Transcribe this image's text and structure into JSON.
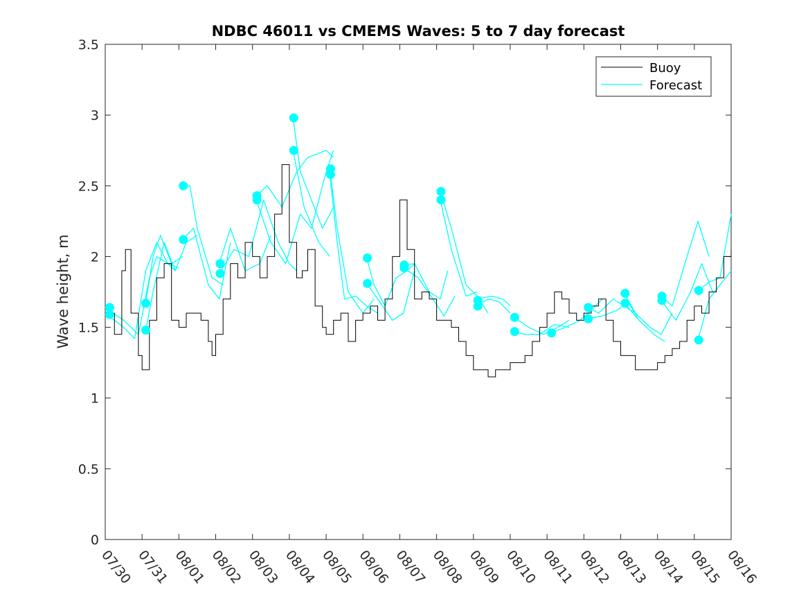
{
  "chart_data": {
    "type": "line",
    "title": "NDBC 46011 vs CMEMS Waves: 5 to 7 day forecast",
    "xlabel": "",
    "ylabel": "Wave height, m",
    "xlim": [
      0,
      17
    ],
    "ylim": [
      0,
      3.5
    ],
    "x_tick_labels": [
      "07/30",
      "07/31",
      "08/01",
      "08/02",
      "08/03",
      "08/04",
      "08/05",
      "08/06",
      "08/07",
      "08/08",
      "08/09",
      "08/10",
      "08/11",
      "08/12",
      "08/13",
      "08/14",
      "08/15",
      "08/16"
    ],
    "y_ticks": [
      0,
      0.5,
      1,
      1.5,
      2,
      2.5,
      3,
      3.5
    ],
    "y_tick_labels": [
      "0",
      "0.5",
      "1",
      "1.5",
      "2",
      "2.5",
      "3",
      "3.5"
    ],
    "legend": {
      "position": "top-right",
      "entries": [
        "Buoy",
        "Forecast"
      ]
    },
    "colors": {
      "buoy": "#000000",
      "forecast": "#00ffff",
      "axes": "#262626"
    },
    "series": [
      {
        "name": "Buoy",
        "type": "step",
        "x": [
          0,
          0.25,
          0.45,
          0.55,
          0.7,
          0.9,
          1.0,
          1.2,
          1.4,
          1.6,
          1.8,
          2.0,
          2.2,
          2.4,
          2.6,
          2.8,
          2.9,
          3.0,
          3.2,
          3.4,
          3.6,
          3.8,
          4.0,
          4.2,
          4.4,
          4.6,
          4.8,
          5.0,
          5.2,
          5.35,
          5.5,
          5.7,
          5.9,
          6.0,
          6.2,
          6.4,
          6.6,
          6.8,
          7.0,
          7.2,
          7.4,
          7.6,
          7.8,
          8.0,
          8.2,
          8.4,
          8.6,
          8.8,
          9.0,
          9.2,
          9.4,
          9.6,
          9.8,
          10.0,
          10.2,
          10.4,
          10.6,
          10.8,
          11.0,
          11.2,
          11.4,
          11.6,
          11.8,
          12.0,
          12.2,
          12.4,
          12.6,
          12.8,
          13.0,
          13.2,
          13.4,
          13.6,
          13.8,
          14.0,
          14.2,
          14.4,
          14.6,
          14.8,
          15.0,
          15.2,
          15.4,
          15.6,
          15.8,
          16.0,
          16.2,
          16.4,
          16.6,
          16.8,
          17.0
        ],
        "values": [
          1.6,
          1.45,
          1.9,
          2.05,
          1.6,
          1.3,
          1.2,
          1.55,
          1.85,
          1.95,
          1.55,
          1.5,
          1.6,
          1.6,
          1.55,
          1.4,
          1.3,
          1.45,
          1.7,
          1.95,
          1.85,
          2.1,
          2.0,
          1.85,
          2.0,
          2.3,
          2.65,
          2.1,
          1.85,
          1.9,
          2.05,
          1.65,
          1.5,
          1.45,
          1.55,
          1.6,
          1.4,
          1.55,
          1.6,
          1.65,
          1.55,
          1.7,
          2.0,
          2.4,
          2.05,
          1.7,
          1.75,
          1.7,
          1.55,
          1.55,
          1.5,
          1.4,
          1.3,
          1.2,
          1.2,
          1.15,
          1.2,
          1.2,
          1.25,
          1.25,
          1.3,
          1.4,
          1.5,
          1.6,
          1.75,
          1.7,
          1.6,
          1.55,
          1.6,
          1.65,
          1.7,
          1.55,
          1.4,
          1.3,
          1.3,
          1.2,
          1.2,
          1.2,
          1.25,
          1.3,
          1.35,
          1.4,
          1.55,
          1.65,
          1.6,
          1.75,
          1.85,
          2.0,
          2.05
        ]
      },
      {
        "name": "Forecast",
        "lines": [
          {
            "x": [
              0.1,
              0.5,
              0.9,
              1.2,
              1.4,
              1.7,
              2.0
            ],
            "values": [
              1.62,
              1.55,
              1.45,
              1.85,
              2.0,
              1.95,
              1.92
            ]
          },
          {
            "x": [
              0.1,
              0.5,
              0.8,
              1.1,
              1.4,
              1.7,
              1.9
            ],
            "values": [
              1.58,
              1.5,
              1.42,
              1.9,
              2.1,
              1.95,
              1.9
            ]
          },
          {
            "x": [
              1.1,
              1.3,
              1.5,
              1.8,
              2.1
            ],
            "values": [
              1.67,
              2.0,
              2.15,
              1.95,
              2.0
            ]
          },
          {
            "x": [
              1.1,
              1.3,
              1.6,
              1.9,
              2.2,
              2.5
            ],
            "values": [
              1.48,
              1.75,
              2.1,
              1.9,
              2.1,
              2.15
            ]
          },
          {
            "x": [
              2.1,
              2.3,
              2.5,
              2.9,
              3.2
            ],
            "values": [
              2.5,
              2.5,
              2.2,
              1.85,
              1.8
            ]
          },
          {
            "x": [
              2.1,
              2.4,
              2.8,
              3.1,
              3.4
            ],
            "values": [
              2.12,
              2.2,
              1.8,
              1.7,
              2.1
            ]
          },
          {
            "x": [
              3.1,
              3.4,
              3.8,
              4.2,
              4.5
            ],
            "values": [
              1.95,
              2.2,
              1.9,
              1.95,
              2.15
            ]
          },
          {
            "x": [
              3.1,
              3.5,
              3.9,
              4.3,
              4.7,
              5.0,
              5.2
            ],
            "values": [
              1.88,
              2.05,
              2.0,
              2.4,
              2.1,
              1.95,
              1.9
            ]
          },
          {
            "x": [
              4.1,
              4.4,
              4.8,
              5.2,
              5.5,
              6.0,
              6.2
            ],
            "values": [
              2.43,
              2.5,
              2.35,
              2.6,
              2.7,
              2.75,
              2.7
            ]
          },
          {
            "x": [
              4.1,
              4.5,
              4.9,
              5.3,
              5.6,
              6.0,
              6.2
            ],
            "values": [
              2.4,
              2.1,
              1.95,
              2.3,
              2.2,
              2.6,
              2.75
            ]
          },
          {
            "x": [
              5.1,
              5.3,
              5.6,
              5.9,
              6.2
            ],
            "values": [
              2.98,
              2.6,
              2.4,
              2.2,
              2.35
            ]
          },
          {
            "x": [
              5.1,
              5.4,
              5.8,
              6.1
            ],
            "values": [
              2.75,
              2.35,
              2.1,
              2.0
            ]
          },
          {
            "x": [
              6.1,
              6.3,
              6.6,
              7.0,
              7.3
            ],
            "values": [
              2.62,
              2.2,
              1.75,
              1.6,
              1.7
            ]
          },
          {
            "x": [
              6.1,
              6.3,
              6.5,
              6.8,
              7.1,
              7.4
            ],
            "values": [
              2.58,
              2.1,
              1.7,
              1.72,
              1.65,
              1.6
            ]
          },
          {
            "x": [
              7.1,
              7.3,
              7.6,
              7.9,
              8.2,
              8.4
            ],
            "values": [
              1.99,
              1.8,
              1.65,
              1.85,
              1.9,
              1.95
            ]
          },
          {
            "x": [
              7.1,
              7.4,
              7.8,
              8.1,
              8.4
            ],
            "values": [
              1.81,
              1.7,
              1.55,
              1.6,
              1.9
            ]
          },
          {
            "x": [
              8.1,
              8.4,
              8.8,
              9.1,
              9.3
            ],
            "values": [
              1.94,
              1.95,
              1.75,
              1.7,
              1.9
            ]
          },
          {
            "x": [
              8.1,
              8.5,
              8.9,
              9.2,
              9.5
            ],
            "values": [
              1.92,
              1.85,
              1.7,
              1.58,
              1.72
            ]
          },
          {
            "x": [
              9.1,
              9.4,
              9.8,
              10.1,
              10.4
            ],
            "values": [
              2.46,
              2.2,
              1.8,
              1.72,
              1.6
            ]
          },
          {
            "x": [
              9.1,
              9.4,
              9.8,
              10.1
            ],
            "values": [
              2.4,
              2.05,
              1.72,
              1.75
            ]
          },
          {
            "x": [
              10.1,
              10.5,
              10.8,
              11.0
            ],
            "values": [
              1.7,
              1.72,
              1.7,
              1.65
            ]
          },
          {
            "x": [
              10.1,
              10.4,
              10.7,
              11.0
            ],
            "values": [
              1.65,
              1.7,
              1.68,
              1.6
            ]
          },
          {
            "x": [
              11.1,
              11.5,
              11.9,
              12.3,
              12.6
            ],
            "values": [
              1.57,
              1.5,
              1.45,
              1.5,
              1.55
            ]
          },
          {
            "x": [
              11.1,
              11.4,
              11.8,
              12.2,
              12.6
            ],
            "values": [
              1.47,
              1.45,
              1.45,
              1.52,
              1.5
            ]
          },
          {
            "x": [
              12.1,
              12.5,
              12.9,
              13.2,
              13.5
            ],
            "values": [
              1.46,
              1.5,
              1.55,
              1.62,
              1.7
            ]
          },
          {
            "x": [
              13.1,
              13.4,
              13.8,
              14.1,
              14.4
            ],
            "values": [
              1.64,
              1.6,
              1.7,
              1.65,
              1.6
            ]
          },
          {
            "x": [
              13.1,
              13.5,
              13.9,
              14.2,
              14.5
            ],
            "values": [
              1.56,
              1.58,
              1.62,
              1.68,
              1.55
            ]
          },
          {
            "x": [
              14.1,
              14.4,
              14.8,
              15.1,
              15.4
            ],
            "values": [
              1.74,
              1.6,
              1.5,
              1.45,
              1.6
            ]
          },
          {
            "x": [
              14.1,
              14.5,
              14.9,
              15.2
            ],
            "values": [
              1.67,
              1.55,
              1.45,
              1.4
            ]
          },
          {
            "x": [
              15.1,
              15.4,
              15.8,
              16.1,
              16.4
            ],
            "values": [
              1.72,
              1.65,
              2.0,
              2.25,
              2.0
            ]
          },
          {
            "x": [
              15.1,
              15.5,
              15.9,
              16.2,
              16.5
            ],
            "values": [
              1.69,
              1.55,
              1.75,
              1.95,
              1.75
            ]
          },
          {
            "x": [
              16.1,
              16.4,
              16.7,
              17.0
            ],
            "values": [
              1.76,
              1.82,
              1.85,
              2.3
            ]
          },
          {
            "x": [
              16.1,
              16.4,
              16.7,
              17.0
            ],
            "values": [
              1.41,
              1.7,
              1.8,
              1.9
            ]
          }
        ],
        "markers": [
          {
            "x": 0.12,
            "y": 1.64
          },
          {
            "x": 0.12,
            "y": 1.59
          },
          {
            "x": 1.1,
            "y": 1.67
          },
          {
            "x": 1.1,
            "y": 1.48
          },
          {
            "x": 2.12,
            "y": 2.5
          },
          {
            "x": 2.12,
            "y": 2.12
          },
          {
            "x": 3.12,
            "y": 1.95
          },
          {
            "x": 3.12,
            "y": 1.88
          },
          {
            "x": 4.12,
            "y": 2.43
          },
          {
            "x": 4.12,
            "y": 2.4
          },
          {
            "x": 5.12,
            "y": 2.98
          },
          {
            "x": 5.12,
            "y": 2.75
          },
          {
            "x": 6.12,
            "y": 2.62
          },
          {
            "x": 6.12,
            "y": 2.58
          },
          {
            "x": 7.12,
            "y": 1.99
          },
          {
            "x": 7.12,
            "y": 1.81
          },
          {
            "x": 8.12,
            "y": 1.94
          },
          {
            "x": 8.12,
            "y": 1.92
          },
          {
            "x": 9.12,
            "y": 2.46
          },
          {
            "x": 9.12,
            "y": 2.4
          },
          {
            "x": 10.12,
            "y": 1.69
          },
          {
            "x": 10.12,
            "y": 1.65
          },
          {
            "x": 11.12,
            "y": 1.57
          },
          {
            "x": 11.12,
            "y": 1.47
          },
          {
            "x": 12.12,
            "y": 1.46
          },
          {
            "x": 13.12,
            "y": 1.64
          },
          {
            "x": 13.12,
            "y": 1.56
          },
          {
            "x": 14.12,
            "y": 1.74
          },
          {
            "x": 14.12,
            "y": 1.67
          },
          {
            "x": 15.12,
            "y": 1.72
          },
          {
            "x": 15.12,
            "y": 1.69
          },
          {
            "x": 16.12,
            "y": 1.76
          },
          {
            "x": 16.12,
            "y": 1.41
          }
        ]
      }
    ]
  }
}
